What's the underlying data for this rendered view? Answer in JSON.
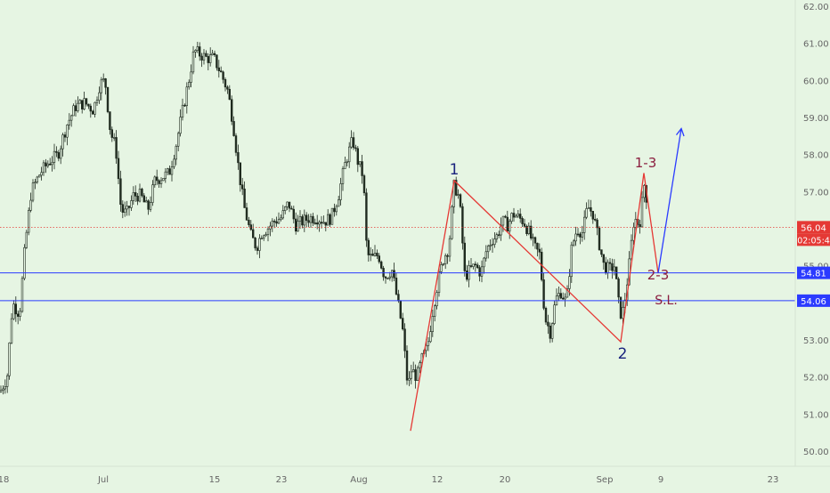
{
  "colors": {
    "background": "#e6f5e3",
    "candle": "#1f2a1f",
    "axis_text": "#666666",
    "blue_line": "#2b3bff",
    "red_line": "#e53935",
    "label_blue": "#1a237e",
    "label_maroon": "#8b1e3f",
    "price_badge_red": "#e53935",
    "price_badge_blue": "#2b3bff"
  },
  "price_axis": {
    "ticks": [
      "62.00",
      "61.00",
      "60.00",
      "59.00",
      "58.00",
      "57.00",
      "56.00",
      "55.00",
      "54.00",
      "53.00",
      "52.00",
      "51.00",
      "50.00"
    ],
    "current_price": "56.04",
    "countdown": "02:05:4"
  },
  "time_axis": {
    "ticks": [
      "18",
      "Jul",
      "15",
      "23",
      "Aug",
      "12",
      "20",
      "Sep",
      "9",
      "23"
    ]
  },
  "annotations": {
    "wave_1": "1",
    "wave_2": "2",
    "wave_1_3": "1-3",
    "wave_2_3": "2-3",
    "stop_loss": "S.L."
  },
  "chart_data": {
    "type": "candlestick",
    "title": "",
    "xlabel": "",
    "ylabel": "",
    "ylim": [
      49.6,
      62.2
    ],
    "grid": false,
    "x_ticks": [
      "18",
      "Jul",
      "15",
      "23",
      "Aug",
      "12",
      "20",
      "Sep",
      "9",
      "23"
    ],
    "y_ticks": [
      62,
      61,
      60,
      59,
      58,
      57,
      56,
      55,
      54,
      53,
      52,
      51,
      50
    ],
    "current_price": 56.04,
    "horizontal_levels": [
      {
        "price": 54.81,
        "label": "54.81",
        "style": "solid",
        "color": "#2b3bff"
      },
      {
        "price": 54.06,
        "label": "54.06",
        "style": "solid",
        "color": "#2b3bff"
      },
      {
        "price": 56.04,
        "label": "56.04",
        "style": "dotted",
        "color": "#e53935"
      }
    ],
    "price_path": [
      [
        0,
        51.6
      ],
      [
        8,
        52.0
      ],
      [
        14,
        54.0
      ],
      [
        22,
        53.7
      ],
      [
        28,
        55.5
      ],
      [
        35,
        57.0
      ],
      [
        45,
        57.5
      ],
      [
        55,
        57.8
      ],
      [
        65,
        58.0
      ],
      [
        75,
        58.8
      ],
      [
        85,
        59.3
      ],
      [
        95,
        59.4
      ],
      [
        105,
        59.2
      ],
      [
        112,
        59.9
      ],
      [
        118,
        60.0
      ],
      [
        124,
        58.6
      ],
      [
        130,
        58.2
      ],
      [
        136,
        56.5
      ],
      [
        142,
        56.4
      ],
      [
        150,
        56.9
      ],
      [
        158,
        56.9
      ],
      [
        166,
        56.5
      ],
      [
        174,
        57.3
      ],
      [
        182,
        57.4
      ],
      [
        190,
        57.5
      ],
      [
        198,
        58.3
      ],
      [
        206,
        59.3
      ],
      [
        212,
        60.0
      ],
      [
        218,
        60.8
      ],
      [
        225,
        60.7
      ],
      [
        232,
        60.6
      ],
      [
        240,
        60.6
      ],
      [
        248,
        60.2
      ],
      [
        256,
        59.7
      ],
      [
        262,
        58.8
      ],
      [
        268,
        57.6
      ],
      [
        274,
        56.6
      ],
      [
        282,
        55.8
      ],
      [
        288,
        55.5
      ],
      [
        294,
        55.9
      ],
      [
        300,
        56.0
      ],
      [
        308,
        56.2
      ],
      [
        316,
        56.3
      ],
      [
        324,
        56.7
      ],
      [
        332,
        56.1
      ],
      [
        340,
        56.2
      ],
      [
        348,
        56.3
      ],
      [
        356,
        56.3
      ],
      [
        364,
        56.2
      ],
      [
        372,
        56.3
      ],
      [
        380,
        56.9
      ],
      [
        388,
        57.8
      ],
      [
        396,
        58.4
      ],
      [
        402,
        57.8
      ],
      [
        408,
        57.4
      ],
      [
        412,
        55.3
      ],
      [
        418,
        55.2
      ],
      [
        425,
        55.3
      ],
      [
        432,
        54.7
      ],
      [
        440,
        54.9
      ],
      [
        446,
        54.1
      ],
      [
        452,
        53.3
      ],
      [
        458,
        51.7
      ],
      [
        462,
        52.2
      ],
      [
        468,
        52.0
      ],
      [
        474,
        52.5
      ],
      [
        480,
        52.8
      ],
      [
        486,
        53.8
      ],
      [
        492,
        54.6
      ],
      [
        498,
        55.2
      ],
      [
        504,
        55.5
      ],
      [
        510,
        57.2
      ],
      [
        516,
        56.8
      ],
      [
        522,
        54.7
      ],
      [
        528,
        54.9
      ],
      [
        534,
        55.0
      ],
      [
        540,
        54.8
      ],
      [
        546,
        55.4
      ],
      [
        552,
        55.7
      ],
      [
        558,
        55.8
      ],
      [
        564,
        56.2
      ],
      [
        570,
        56.1
      ],
      [
        576,
        56.4
      ],
      [
        582,
        56.3
      ],
      [
        588,
        56.2
      ],
      [
        594,
        55.9
      ],
      [
        600,
        55.5
      ],
      [
        606,
        55.3
      ],
      [
        612,
        53.6
      ],
      [
        618,
        53.2
      ],
      [
        624,
        54.1
      ],
      [
        630,
        54.3
      ],
      [
        636,
        54.0
      ],
      [
        642,
        55.5
      ],
      [
        648,
        56.0
      ],
      [
        654,
        55.9
      ],
      [
        660,
        56.6
      ],
      [
        666,
        56.4
      ],
      [
        672,
        55.7
      ],
      [
        678,
        55.0
      ],
      [
        684,
        54.9
      ],
      [
        690,
        55.0
      ],
      [
        696,
        53.7
      ],
      [
        700,
        53.8
      ],
      [
        706,
        54.9
      ],
      [
        712,
        56.3
      ],
      [
        718,
        56.1
      ],
      [
        724,
        57.3
      ],
      [
        728,
        56.3
      ]
    ],
    "drawings": [
      {
        "type": "polyline",
        "color": "red",
        "points": [
          [
            461,
            50.55
          ],
          [
            510,
            57.3
          ],
          [
            697,
            52.95
          ],
          [
            723,
            57.5
          ],
          [
            739,
            54.8
          ]
        ]
      },
      {
        "type": "arrow",
        "color": "blue",
        "from": [
          739,
          54.8
        ],
        "to": [
          765,
          58.7
        ]
      }
    ]
  }
}
